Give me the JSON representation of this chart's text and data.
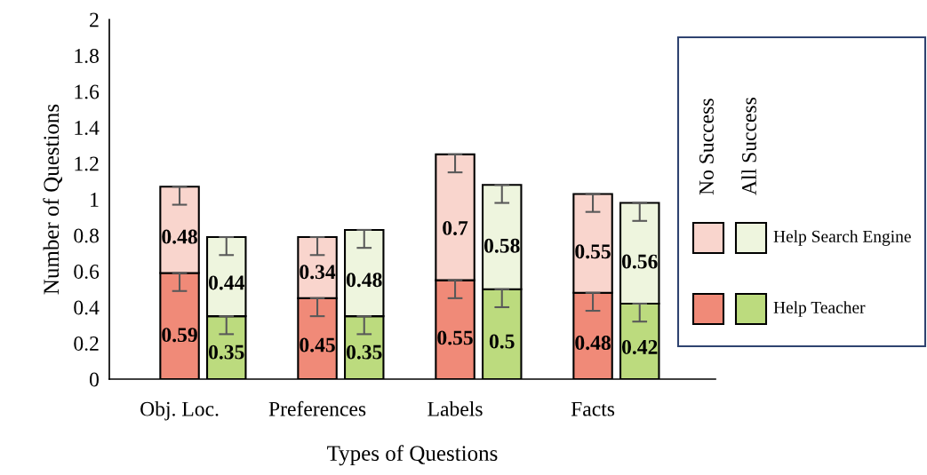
{
  "chart_data": {
    "type": "bar",
    "stacked": true,
    "xlabel": "Types of Questions",
    "ylabel": "Number of Questions",
    "categories": [
      "Obj. Loc.",
      null,
      "Preferences",
      null,
      "Labels",
      null,
      "Facts",
      null
    ],
    "ylim": [
      0,
      2
    ],
    "yticks": [
      0,
      0.2,
      0.4,
      0.6,
      0.8,
      1,
      1.2,
      1.4,
      1.6,
      1.8,
      2
    ],
    "grid": false,
    "legend": "right",
    "data_labels": true,
    "annotations": [
      "No Success",
      "All Success"
    ],
    "series": [
      {
        "name": "Help Teacher",
        "colors": [
          "#f08a78",
          "#bcdb7e",
          "#f08a78",
          "#bcdb7e",
          "#f08a78",
          "#bcdb7e",
          "#f08a78",
          "#bcdb7e"
        ],
        "values": [
          0.59,
          0.35,
          0.45,
          0.35,
          0.55,
          0.5,
          0.48,
          0.42
        ],
        "errors": [
          [
            0.49,
            0.59
          ],
          [
            0.25,
            0.35
          ],
          [
            0.35,
            0.45
          ],
          [
            0.25,
            0.35
          ],
          [
            0.45,
            0.55
          ],
          [
            0.4,
            0.5
          ],
          [
            0.38,
            0.48
          ],
          [
            0.32,
            0.42
          ]
        ]
      },
      {
        "name": "Help Search Engine",
        "colors": [
          "#f9d5cd",
          "#eef5de",
          "#f9d5cd",
          "#eef5de",
          "#f9d5cd",
          "#eef5de",
          "#f9d5cd",
          "#eef5de"
        ],
        "values": [
          0.48,
          0.44,
          0.34,
          0.48,
          0.7,
          0.58,
          0.55,
          0.56
        ],
        "errors": [
          [
            0.97,
            1.07
          ],
          [
            0.69,
            0.79
          ],
          [
            0.69,
            0.79
          ],
          [
            0.73,
            0.83
          ],
          [
            1.15,
            1.25
          ],
          [
            0.98,
            1.08
          ],
          [
            0.93,
            1.03
          ],
          [
            0.88,
            0.98
          ]
        ]
      }
    ]
  }
}
